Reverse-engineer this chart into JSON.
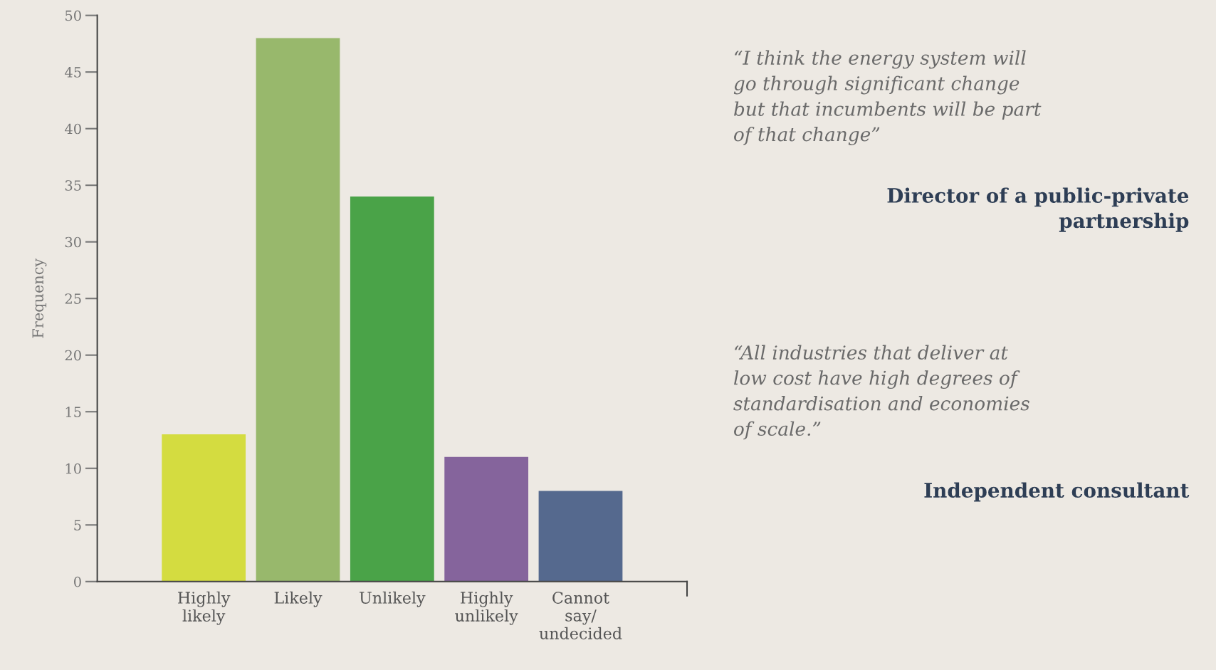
{
  "chart_data": {
    "type": "bar",
    "ylabel": "Frequency",
    "categories": [
      "Highly\nlikely",
      "Likely",
      "Unlikely",
      "Highly\nunlikely",
      "Cannot\nsay/\nundecided"
    ],
    "values": [
      13,
      48,
      34,
      11,
      8
    ],
    "colors": [
      "#d4dc40",
      "#98b86c",
      "#4aa348",
      "#85649c",
      "#55698e"
    ],
    "ylim": [
      0,
      50
    ],
    "yticks": [
      0,
      5,
      10,
      15,
      20,
      25,
      30,
      35,
      40,
      45,
      50
    ],
    "grid": false,
    "legend": false,
    "annotations": [
      "“I think the energy system will\ngo through significant change\nbut that incumbents will be part\nof that change”",
      "Director of a public-private\npartnership",
      "“All industries that deliver at\nlow cost have high degrees of\nstandardisation and economies\nof scale.”",
      "Independent consultant"
    ]
  }
}
